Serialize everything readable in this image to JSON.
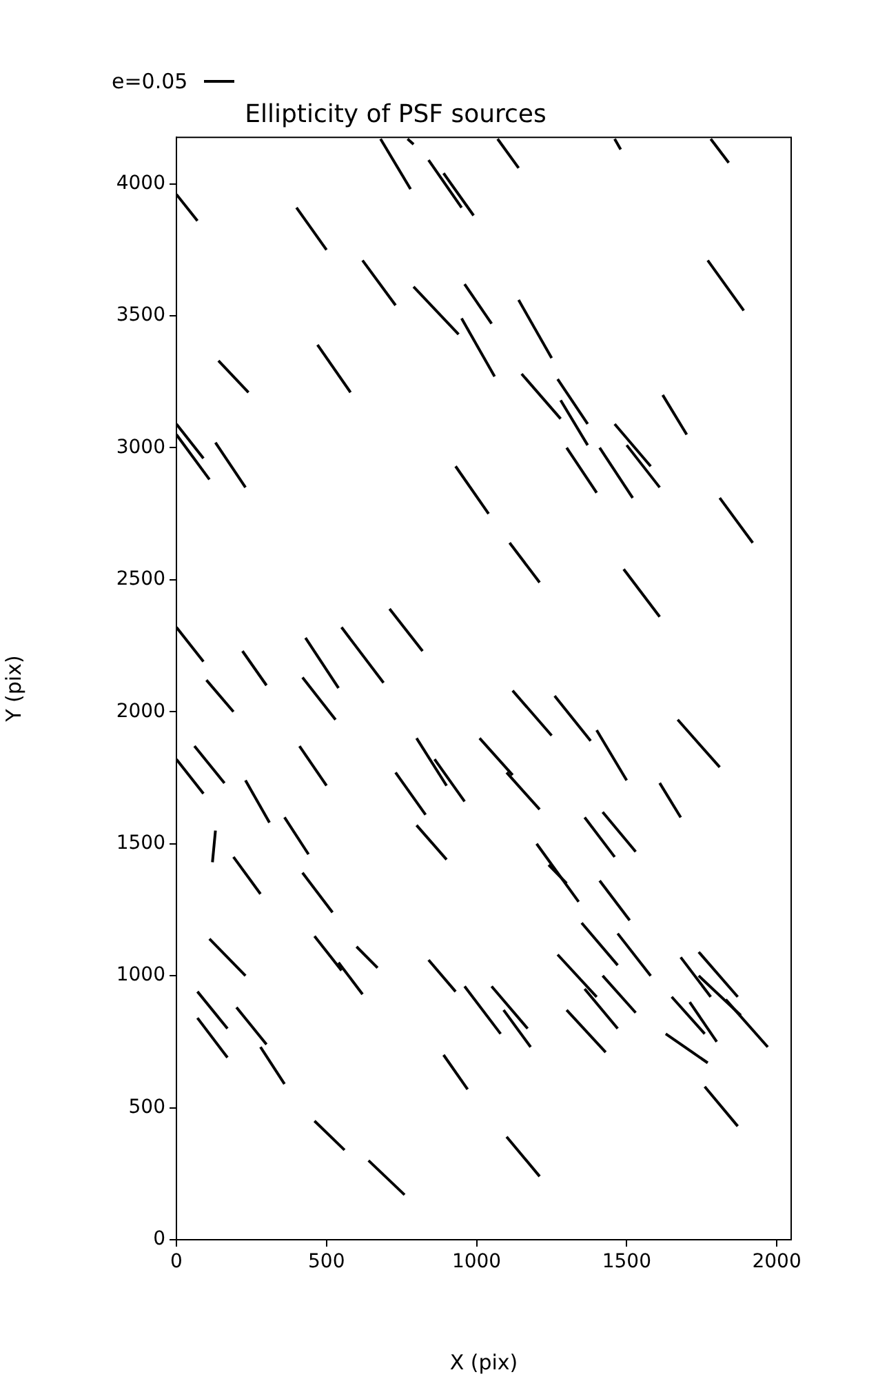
{
  "chart_data": {
    "type": "line",
    "title": "Ellipticity of PSF sources",
    "xlabel": "X (pix)",
    "ylabel": "Y (pix)",
    "annotations": [
      "e=0.05"
    ],
    "xlim": [
      0,
      2048
    ],
    "ylim": [
      0,
      4176
    ],
    "xticks": [
      0,
      500,
      1000,
      1500,
      2000
    ],
    "yticks": [
      0,
      500,
      1000,
      1500,
      2000,
      2500,
      3000,
      3500,
      4000
    ],
    "grid": false,
    "series": [
      {
        "color": "#000000",
        "x": [
          680,
          780
        ],
        "values": [
          4170,
          3980
        ]
      },
      {
        "color": "#000000",
        "x": [
          770,
          790
        ],
        "values": [
          4170,
          4150
        ]
      },
      {
        "color": "#000000",
        "x": [
          0,
          70
        ],
        "values": [
          3960,
          3860
        ]
      },
      {
        "color": "#000000",
        "x": [
          840,
          950
        ],
        "values": [
          4090,
          3910
        ]
      },
      {
        "color": "#000000",
        "x": [
          890,
          990
        ],
        "values": [
          4040,
          3880
        ]
      },
      {
        "color": "#000000",
        "x": [
          400,
          500
        ],
        "values": [
          3910,
          3750
        ]
      },
      {
        "color": "#000000",
        "x": [
          620,
          730
        ],
        "values": [
          3710,
          3540
        ]
      },
      {
        "color": "#000000",
        "x": [
          790,
          940
        ],
        "values": [
          3610,
          3430
        ]
      },
      {
        "color": "#000000",
        "x": [
          960,
          1050
        ],
        "values": [
          3620,
          3470
        ]
      },
      {
        "color": "#000000",
        "x": [
          950,
          1060
        ],
        "values": [
          3490,
          3270
        ]
      },
      {
        "color": "#000000",
        "x": [
          140,
          240
        ],
        "values": [
          3330,
          3210
        ]
      },
      {
        "color": "#000000",
        "x": [
          470,
          580
        ],
        "values": [
          3390,
          3210
        ]
      },
      {
        "color": "#000000",
        "x": [
          0,
          90
        ],
        "values": [
          3090,
          2960
        ]
      },
      {
        "color": "#000000",
        "x": [
          0,
          110
        ],
        "values": [
          3050,
          2880
        ]
      },
      {
        "color": "#000000",
        "x": [
          130,
          230
        ],
        "values": [
          3020,
          2850
        ]
      },
      {
        "color": "#000000",
        "x": [
          930,
          1040
        ],
        "values": [
          2930,
          2750
        ]
      },
      {
        "color": "#000000",
        "x": [
          1070,
          1140
        ],
        "values": [
          4170,
          4060
        ]
      },
      {
        "color": "#000000",
        "x": [
          1460,
          1480
        ],
        "values": [
          4170,
          4130
        ]
      },
      {
        "color": "#000000",
        "x": [
          1780,
          1840
        ],
        "values": [
          4170,
          4080
        ]
      },
      {
        "color": "#000000",
        "x": [
          1770,
          1890
        ],
        "values": [
          3710,
          3520
        ]
      },
      {
        "color": "#000000",
        "x": [
          1140,
          1250
        ],
        "values": [
          3560,
          3340
        ]
      },
      {
        "color": "#000000",
        "x": [
          1150,
          1280
        ],
        "values": [
          3280,
          3110
        ]
      },
      {
        "color": "#000000",
        "x": [
          1270,
          1370
        ],
        "values": [
          3260,
          3090
        ]
      },
      {
        "color": "#000000",
        "x": [
          1280,
          1370
        ],
        "values": [
          3180,
          3010
        ]
      },
      {
        "color": "#000000",
        "x": [
          1620,
          1700
        ],
        "values": [
          3200,
          3050
        ]
      },
      {
        "color": "#000000",
        "x": [
          1460,
          1580
        ],
        "values": [
          3090,
          2930
        ]
      },
      {
        "color": "#000000",
        "x": [
          1500,
          1610
        ],
        "values": [
          3010,
          2850
        ]
      },
      {
        "color": "#000000",
        "x": [
          1300,
          1400
        ],
        "values": [
          3000,
          2830
        ]
      },
      {
        "color": "#000000",
        "x": [
          1410,
          1520
        ],
        "values": [
          3000,
          2810
        ]
      },
      {
        "color": "#000000",
        "x": [
          1810,
          1920
        ],
        "values": [
          2810,
          2640
        ]
      },
      {
        "color": "#000000",
        "x": [
          0,
          90
        ],
        "values": [
          2320,
          2190
        ]
      },
      {
        "color": "#000000",
        "x": [
          220,
          300
        ],
        "values": [
          2230,
          2100
        ]
      },
      {
        "color": "#000000",
        "x": [
          100,
          190
        ],
        "values": [
          2120,
          2000
        ]
      },
      {
        "color": "#000000",
        "x": [
          430,
          540
        ],
        "values": [
          2280,
          2090
        ]
      },
      {
        "color": "#000000",
        "x": [
          550,
          690
        ],
        "values": [
          2320,
          2110
        ]
      },
      {
        "color": "#000000",
        "x": [
          710,
          820
        ],
        "values": [
          2390,
          2230
        ]
      },
      {
        "color": "#000000",
        "x": [
          420,
          530
        ],
        "values": [
          2130,
          1970
        ]
      },
      {
        "color": "#000000",
        "x": [
          60,
          160
        ],
        "values": [
          1870,
          1730
        ]
      },
      {
        "color": "#000000",
        "x": [
          0,
          90
        ],
        "values": [
          1820,
          1690
        ]
      },
      {
        "color": "#000000",
        "x": [
          410,
          500
        ],
        "values": [
          1870,
          1720
        ]
      },
      {
        "color": "#000000",
        "x": [
          230,
          310
        ],
        "values": [
          1740,
          1580
        ]
      },
      {
        "color": "#000000",
        "x": [
          800,
          900
        ],
        "values": [
          1900,
          1720
        ]
      },
      {
        "color": "#000000",
        "x": [
          860,
          960
        ],
        "values": [
          1820,
          1660
        ]
      },
      {
        "color": "#000000",
        "x": [
          730,
          830
        ],
        "values": [
          1770,
          1610
        ]
      },
      {
        "color": "#000000",
        "x": [
          360,
          440
        ],
        "values": [
          1600,
          1460
        ]
      },
      {
        "color": "#000000",
        "x": [
          800,
          900
        ],
        "values": [
          1570,
          1440
        ]
      },
      {
        "color": "#000000",
        "x": [
          130,
          120
        ],
        "values": [
          1550,
          1430
        ]
      },
      {
        "color": "#000000",
        "x": [
          190,
          280
        ],
        "values": [
          1450,
          1310
        ]
      },
      {
        "color": "#000000",
        "x": [
          420,
          520
        ],
        "values": [
          1390,
          1240
        ]
      },
      {
        "color": "#000000",
        "x": [
          1110,
          1210
        ],
        "values": [
          2640,
          2490
        ]
      },
      {
        "color": "#000000",
        "x": [
          1490,
          1610
        ],
        "values": [
          2540,
          2360
        ]
      },
      {
        "color": "#000000",
        "x": [
          1120,
          1250
        ],
        "values": [
          2080,
          1910
        ]
      },
      {
        "color": "#000000",
        "x": [
          1260,
          1380
        ],
        "values": [
          2060,
          1890
        ]
      },
      {
        "color": "#000000",
        "x": [
          1400,
          1500
        ],
        "values": [
          1930,
          1740
        ]
      },
      {
        "color": "#000000",
        "x": [
          1670,
          1810
        ],
        "values": [
          1970,
          1790
        ]
      },
      {
        "color": "#000000",
        "x": [
          1010,
          1120
        ],
        "values": [
          1900,
          1760
        ]
      },
      {
        "color": "#000000",
        "x": [
          1100,
          1210
        ],
        "values": [
          1770,
          1630
        ]
      },
      {
        "color": "#000000",
        "x": [
          1610,
          1680
        ],
        "values": [
          1730,
          1600
        ]
      },
      {
        "color": "#000000",
        "x": [
          1360,
          1460
        ],
        "values": [
          1600,
          1450
        ]
      },
      {
        "color": "#000000",
        "x": [
          1420,
          1530
        ],
        "values": [
          1620,
          1470
        ]
      },
      {
        "color": "#000000",
        "x": [
          1200,
          1340
        ],
        "values": [
          1500,
          1280
        ]
      },
      {
        "color": "#000000",
        "x": [
          1240,
          1300
        ],
        "values": [
          1420,
          1350
        ]
      },
      {
        "color": "#000000",
        "x": [
          1410,
          1510
        ],
        "values": [
          1360,
          1210
        ]
      },
      {
        "color": "#000000",
        "x": [
          110,
          230
        ],
        "values": [
          1140,
          1000
        ]
      },
      {
        "color": "#000000",
        "x": [
          460,
          550
        ],
        "values": [
          1150,
          1020
        ]
      },
      {
        "color": "#000000",
        "x": [
          540,
          620
        ],
        "values": [
          1050,
          930
        ]
      },
      {
        "color": "#000000",
        "x": [
          600,
          670
        ],
        "values": [
          1110,
          1030
        ]
      },
      {
        "color": "#000000",
        "x": [
          840,
          930
        ],
        "values": [
          1060,
          940
        ]
      },
      {
        "color": "#000000",
        "x": [
          960,
          1080
        ],
        "values": [
          960,
          780
        ]
      },
      {
        "color": "#000000",
        "x": [
          70,
          170
        ],
        "values": [
          940,
          800
        ]
      },
      {
        "color": "#000000",
        "x": [
          70,
          170
        ],
        "values": [
          840,
          690
        ]
      },
      {
        "color": "#000000",
        "x": [
          200,
          300
        ],
        "values": [
          880,
          740
        ]
      },
      {
        "color": "#000000",
        "x": [
          280,
          360
        ],
        "values": [
          730,
          590
        ]
      },
      {
        "color": "#000000",
        "x": [
          890,
          970
        ],
        "values": [
          700,
          570
        ]
      },
      {
        "color": "#000000",
        "x": [
          460,
          560
        ],
        "values": [
          450,
          340
        ]
      },
      {
        "color": "#000000",
        "x": [
          640,
          760
        ],
        "values": [
          300,
          170
        ]
      },
      {
        "color": "#000000",
        "x": [
          1350,
          1470
        ],
        "values": [
          1200,
          1040
        ]
      },
      {
        "color": "#000000",
        "x": [
          1470,
          1580
        ],
        "values": [
          1160,
          1000
        ]
      },
      {
        "color": "#000000",
        "x": [
          1270,
          1400
        ],
        "values": [
          1080,
          920
        ]
      },
      {
        "color": "#000000",
        "x": [
          1360,
          1470
        ],
        "values": [
          950,
          800
        ]
      },
      {
        "color": "#000000",
        "x": [
          1420,
          1530
        ],
        "values": [
          1000,
          860
        ]
      },
      {
        "color": "#000000",
        "x": [
          1050,
          1170
        ],
        "values": [
          960,
          800
        ]
      },
      {
        "color": "#000000",
        "x": [
          1090,
          1180
        ],
        "values": [
          870,
          730
        ]
      },
      {
        "color": "#000000",
        "x": [
          1300,
          1430
        ],
        "values": [
          870,
          710
        ]
      },
      {
        "color": "#000000",
        "x": [
          1680,
          1780
        ],
        "values": [
          1070,
          920
        ]
      },
      {
        "color": "#000000",
        "x": [
          1740,
          1870
        ],
        "values": [
          1090,
          920
        ]
      },
      {
        "color": "#000000",
        "x": [
          1740,
          1880
        ],
        "values": [
          1000,
          850
        ]
      },
      {
        "color": "#000000",
        "x": [
          1830,
          1970
        ],
        "values": [
          910,
          730
        ]
      },
      {
        "color": "#000000",
        "x": [
          1650,
          1760
        ],
        "values": [
          920,
          780
        ]
      },
      {
        "color": "#000000",
        "x": [
          1710,
          1800
        ],
        "values": [
          900,
          750
        ]
      },
      {
        "color": "#000000",
        "x": [
          1630,
          1770
        ],
        "values": [
          780,
          670
        ]
      },
      {
        "color": "#000000",
        "x": [
          1760,
          1870
        ],
        "values": [
          580,
          430
        ]
      },
      {
        "color": "#000000",
        "x": [
          1100,
          1210
        ],
        "values": [
          390,
          240
        ]
      }
    ]
  }
}
